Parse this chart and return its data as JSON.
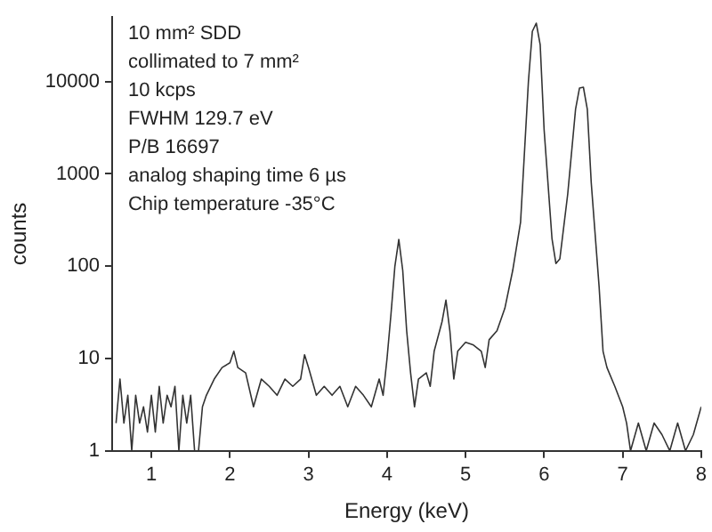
{
  "chart_data": {
    "type": "line",
    "xlabel": "Energy (keV)",
    "ylabel": "counts",
    "log": "y",
    "grid": false,
    "legend": false,
    "marker": "none",
    "line_style": "solid",
    "annotations": [
      "10 mm² SDD",
      "collimated to 7 mm²",
      "10 kcps",
      "FWHM 129.7 eV",
      "P/B 16697",
      "analog shaping time 6 µs",
      "Chip temperature -35°C"
    ],
    "xlim": [
      0.5,
      8
    ],
    "xticks": [
      1,
      2,
      3,
      4,
      5,
      6,
      7,
      8
    ],
    "ylim": [
      1,
      50000
    ],
    "yticks": [
      1,
      10,
      100,
      1000,
      10000
    ],
    "x": [
      0.55,
      0.6,
      0.65,
      0.7,
      0.75,
      0.8,
      0.85,
      0.9,
      0.95,
      1.0,
      1.05,
      1.1,
      1.15,
      1.2,
      1.25,
      1.3,
      1.35,
      1.4,
      1.45,
      1.5,
      1.55,
      1.6,
      1.65,
      1.7,
      1.8,
      1.9,
      2.0,
      2.05,
      2.1,
      2.2,
      2.3,
      2.4,
      2.5,
      2.6,
      2.7,
      2.8,
      2.9,
      2.95,
      3.0,
      3.1,
      3.2,
      3.3,
      3.4,
      3.5,
      3.6,
      3.7,
      3.8,
      3.9,
      3.95,
      4.0,
      4.05,
      4.1,
      4.15,
      4.2,
      4.25,
      4.3,
      4.35,
      4.4,
      4.5,
      4.55,
      4.6,
      4.7,
      4.75,
      4.8,
      4.85,
      4.9,
      5.0,
      5.1,
      5.2,
      5.25,
      5.3,
      5.4,
      5.5,
      5.6,
      5.7,
      5.8,
      5.85,
      5.9,
      5.95,
      6.0,
      6.1,
      6.15,
      6.2,
      6.3,
      6.4,
      6.45,
      6.5,
      6.55,
      6.6,
      6.7,
      6.75,
      6.8,
      6.9,
      7.0,
      7.05,
      7.1,
      7.2,
      7.3,
      7.4,
      7.5,
      7.6,
      7.7,
      7.8,
      7.9,
      8.0
    ],
    "series": [
      {
        "color": "#333333",
        "values": [
          2,
          6,
          2,
          4,
          1,
          4,
          2,
          3,
          1.6,
          4,
          1.6,
          5,
          2,
          4,
          3,
          5,
          1,
          4,
          2,
          4,
          1,
          1,
          3,
          4,
          6,
          8,
          9,
          12,
          8,
          7,
          3,
          6,
          5,
          4,
          6,
          5,
          6,
          11,
          8,
          4,
          5,
          4,
          5,
          3,
          5,
          4,
          3,
          6,
          4,
          10,
          30,
          100,
          195,
          90,
          20,
          7,
          3,
          6,
          7,
          5,
          12,
          25,
          43,
          20,
          6,
          12,
          15,
          14,
          12,
          8,
          16,
          20,
          35,
          90,
          300,
          10000,
          35000,
          43000,
          25000,
          3000,
          200,
          107,
          120,
          600,
          5000,
          8500,
          8700,
          5000,
          800,
          60,
          12,
          8,
          5,
          3,
          2,
          1,
          2,
          1,
          2,
          1.5,
          1,
          2,
          1,
          1.5,
          3
        ]
      }
    ]
  }
}
